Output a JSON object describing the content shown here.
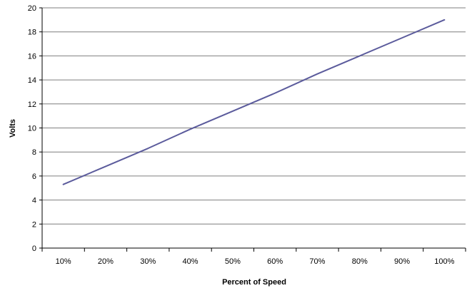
{
  "chart_data": {
    "type": "line",
    "title": "",
    "xlabel": "Percent of Speed",
    "ylabel": "Volts",
    "categories": [
      "10%",
      "20%",
      "30%",
      "40%",
      "50%",
      "60%",
      "70%",
      "80%",
      "90%",
      "100%"
    ],
    "series": [
      {
        "values": [
          5.3,
          6.8,
          8.3,
          9.9,
          11.4,
          12.9,
          14.5,
          16.0,
          17.5,
          19.0
        ]
      }
    ],
    "ylim": [
      0,
      20
    ],
    "y_ticks": [
      "0",
      "2",
      "4",
      "6",
      "8",
      "10",
      "12",
      "14",
      "16",
      "18",
      "20"
    ],
    "grid": "horizontal",
    "legend": "none",
    "colors": {
      "line": "#5b5b9c",
      "grid": "#7f7f7f",
      "axis": "#000000"
    }
  }
}
